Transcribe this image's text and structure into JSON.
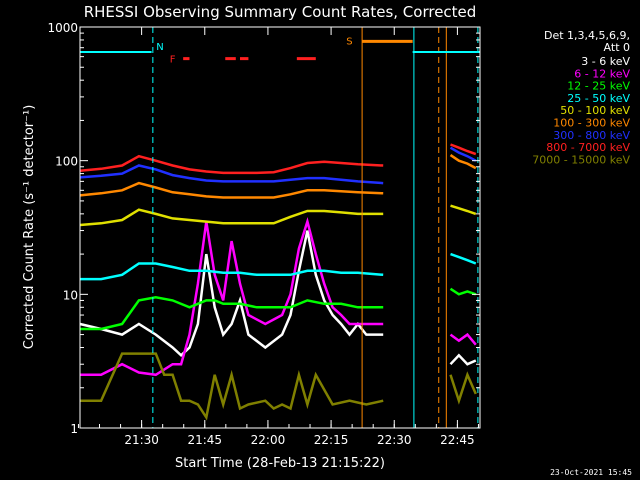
{
  "chart_data": {
    "type": "line",
    "title": "RHESSI Observing Summary Count Rates, Corrected",
    "xlabel": "Start Time (28-Feb-13 21:15:22)",
    "ylabel": "Corrected Count Rate (s⁻¹ detector⁻¹)",
    "y_scale": "log",
    "ylim": [
      1,
      1000
    ],
    "xlim_minutes_after_start": [
      0,
      95
    ],
    "x_ticks": [
      "21:30",
      "21:45",
      "22:00",
      "22:15",
      "22:30",
      "22:45"
    ],
    "y_ticks": [
      "1",
      "10",
      "100",
      "1000"
    ],
    "legend_header": [
      "Det 1,3,4,5,6,9,",
      "Att 0"
    ],
    "legend_position": "right",
    "grid": false,
    "series": [
      {
        "name": "3 - 6 keV",
        "color": "#ffffff",
        "segments": [
          {
            "x": [
              0,
              5,
              10,
              14,
              18,
              22,
              24,
              26,
              28,
              30,
              32,
              34,
              36,
              38,
              40,
              44,
              48,
              50,
              52,
              54,
              56,
              58,
              60,
              62,
              64,
              66,
              68,
              72
            ],
            "y": [
              6,
              5.5,
              5,
              6,
              5,
              4,
              3.5,
              4,
              6,
              20,
              8,
              5,
              6,
              9,
              5,
              4,
              5,
              7,
              15,
              30,
              14,
              9,
              7,
              6,
              5,
              6,
              5,
              5
            ]
          },
          {
            "x": [
              88,
              90,
              92,
              94
            ],
            "y": [
              3,
              3.5,
              3,
              3.2
            ]
          }
        ]
      },
      {
        "name": "6 - 12 keV",
        "color": "#ff00ff",
        "segments": [
          {
            "x": [
              0,
              5,
              10,
              14,
              18,
              22,
              24,
              26,
              28,
              30,
              32,
              34,
              36,
              38,
              40,
              44,
              48,
              50,
              52,
              54,
              56,
              58,
              60,
              62,
              64,
              66,
              68,
              72
            ],
            "y": [
              2.5,
              2.5,
              3,
              2.6,
              2.5,
              3,
              3,
              5,
              12,
              35,
              14,
              9,
              25,
              12,
              7,
              6,
              7,
              10,
              22,
              35,
              20,
              12,
              8,
              7,
              6,
              6,
              6,
              6
            ]
          },
          {
            "x": [
              88,
              90,
              92,
              94
            ],
            "y": [
              5,
              4.5,
              5,
              4.2
            ]
          }
        ]
      },
      {
        "name": "12 - 25 keV",
        "color": "#00ff00",
        "segments": [
          {
            "x": [
              0,
              5,
              10,
              14,
              18,
              22,
              26,
              28,
              30,
              32,
              34,
              38,
              42,
              46,
              50,
              54,
              58,
              62,
              66,
              72
            ],
            "y": [
              5.5,
              5.5,
              6,
              9,
              9.5,
              9,
              8,
              8.5,
              9,
              9,
              8.5,
              8.5,
              8,
              8,
              8,
              9,
              8.5,
              8.5,
              8,
              8
            ]
          },
          {
            "x": [
              88,
              90,
              92,
              94
            ],
            "y": [
              11,
              10,
              10.5,
              10
            ]
          }
        ]
      },
      {
        "name": "25 - 50 keV",
        "color": "#00ffff",
        "segments": [
          {
            "x": [
              0,
              5,
              10,
              14,
              18,
              22,
              26,
              30,
              34,
              38,
              42,
              46,
              50,
              54,
              58,
              62,
              66,
              72
            ],
            "y": [
              13,
              13,
              14,
              17,
              17,
              16,
              15,
              15,
              14.5,
              14.5,
              14,
              14,
              14,
              15,
              15,
              14.5,
              14.5,
              14
            ]
          },
          {
            "x": [
              88,
              90,
              92,
              94
            ],
            "y": [
              20,
              19,
              18,
              17
            ]
          }
        ]
      },
      {
        "name": "50 - 100 keV",
        "color": "#e0e000",
        "segments": [
          {
            "x": [
              0,
              5,
              10,
              14,
              18,
              22,
              26,
              30,
              34,
              38,
              42,
              46,
              50,
              54,
              58,
              62,
              66,
              72
            ],
            "y": [
              33,
              34,
              36,
              43,
              40,
              37,
              36,
              35,
              34,
              34,
              34,
              34,
              38,
              42,
              42,
              41,
              40,
              40
            ]
          },
          {
            "x": [
              88,
              90,
              92,
              94
            ],
            "y": [
              46,
              44,
              42,
              40
            ]
          }
        ]
      },
      {
        "name": "100 - 300 keV",
        "color": "#ff8800",
        "segments": [
          {
            "x": [
              0,
              5,
              10,
              14,
              18,
              22,
              26,
              30,
              34,
              38,
              42,
              46,
              50,
              54,
              58,
              62,
              66,
              72
            ],
            "y": [
              55,
              57,
              60,
              68,
              63,
              58,
              56,
              54,
              53,
              53,
              53,
              53,
              56,
              60,
              60,
              59,
              58,
              57
            ]
          },
          {
            "x": [
              88,
              90,
              92,
              94
            ],
            "y": [
              110,
              100,
              95,
              88
            ]
          }
        ]
      },
      {
        "name": "300 - 800 keV",
        "color": "#2030ff",
        "segments": [
          {
            "x": [
              0,
              5,
              10,
              14,
              18,
              22,
              26,
              30,
              34,
              38,
              42,
              46,
              50,
              54,
              58,
              62,
              66,
              72
            ],
            "y": [
              75,
              77,
              80,
              92,
              86,
              78,
              74,
              71,
              70,
              70,
              70,
              70,
              72,
              74,
              74,
              72,
              70,
              68
            ]
          },
          {
            "x": [
              88,
              90,
              92,
              94
            ],
            "y": [
              125,
              115,
              108,
              100
            ]
          }
        ]
      },
      {
        "name": "800 - 7000 keV",
        "color": "#ff2020",
        "segments": [
          {
            "x": [
              0,
              5,
              10,
              14,
              18,
              22,
              26,
              30,
              34,
              38,
              42,
              46,
              50,
              54,
              58,
              62,
              66,
              72
            ],
            "y": [
              84,
              87,
              92,
              108,
              100,
              92,
              86,
              83,
              81,
              81,
              81,
              82,
              88,
              96,
              98,
              96,
              94,
              92
            ]
          },
          {
            "x": [
              88,
              90,
              92,
              94
            ],
            "y": [
              132,
              125,
              118,
              112
            ]
          }
        ]
      },
      {
        "name": "7000 - 15000 keV",
        "color": "#808000",
        "segments": [
          {
            "x": [
              0,
              5,
              10,
              14,
              18,
              20,
              22,
              24,
              26,
              28,
              30,
              32,
              34,
              36,
              38,
              40,
              44,
              46,
              48,
              50,
              52,
              54,
              56,
              60,
              64,
              68,
              72
            ],
            "y": [
              1.6,
              1.6,
              3.6,
              3.6,
              3.6,
              2.5,
              2.5,
              1.6,
              1.6,
              1.5,
              1.2,
              2.5,
              1.5,
              2.5,
              1.4,
              1.5,
              1.6,
              1.4,
              1.5,
              1.4,
              2.5,
              1.5,
              2.5,
              1.5,
              1.6,
              1.5,
              1.6
            ]
          },
          {
            "x": [
              88,
              90,
              92,
              94
            ],
            "y": [
              2.5,
              1.6,
              2.5,
              1.8
            ]
          }
        ]
      }
    ],
    "annotations": {
      "state_bar_cyan": {
        "color": "#00ffff",
        "y": 650,
        "segments": [
          [
            0,
            17
          ],
          [
            79,
            95
          ]
        ]
      },
      "state_bar_orange": {
        "color": "#ff8800",
        "y": 780,
        "segments": [
          [
            67,
            79
          ]
        ]
      },
      "flag_labels": [
        {
          "text": "N",
          "x": 19,
          "y": 720,
          "color": "#00ffff"
        },
        {
          "text": "F",
          "x": 22,
          "y": 580,
          "color": "#ff2020"
        },
        {
          "text": "S",
          "x": 64,
          "y": 790,
          "color": "#ff8800"
        }
      ],
      "flare_marks": {
        "color": "#ff2020",
        "y": 580,
        "segments": [
          [
            24.5,
            26
          ],
          [
            34.5,
            37
          ],
          [
            38,
            40
          ],
          [
            51.5,
            56
          ]
        ]
      },
      "vertical_lines": [
        {
          "x": 17.3,
          "color": "#00ffff",
          "style": "dashed"
        },
        {
          "x": 67.0,
          "color": "#ff8800",
          "style": "solid"
        },
        {
          "x": 79.3,
          "color": "#00ffff",
          "style": "solid"
        },
        {
          "x": 85.2,
          "color": "#ff8800",
          "style": "dashed"
        },
        {
          "x": 87.0,
          "color": "#ff8800",
          "style": "solid"
        },
        {
          "x": 94.5,
          "color": "#00ffff",
          "style": "dashed"
        }
      ]
    }
  },
  "footer": {
    "timestamp": "23-Oct-2021 15:45"
  }
}
